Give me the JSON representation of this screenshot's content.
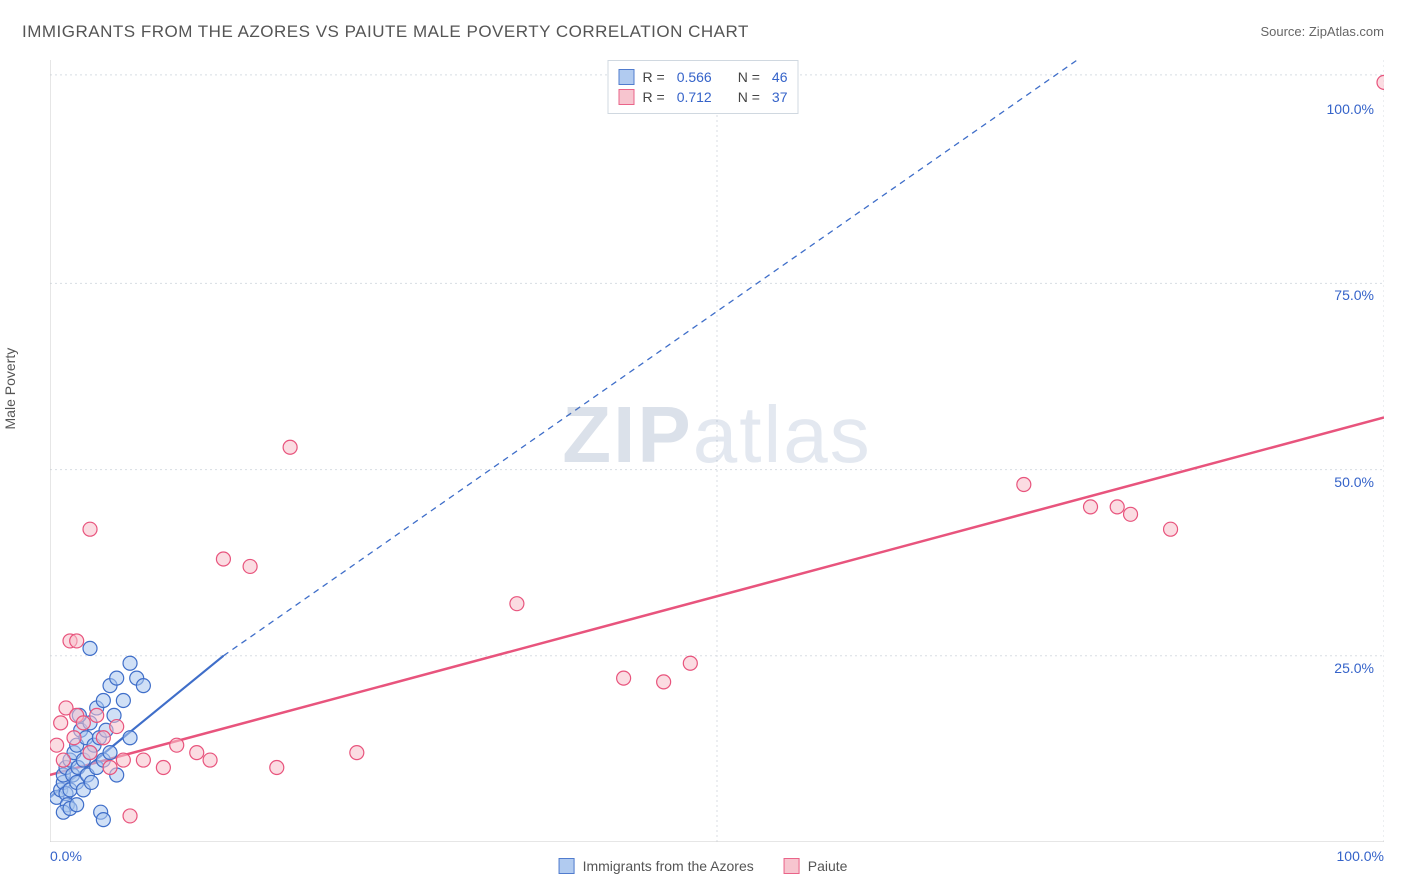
{
  "title": "IMMIGRANTS FROM THE AZORES VS PAIUTE MALE POVERTY CORRELATION CHART",
  "source_prefix": "Source: ",
  "source": "ZipAtlas.com",
  "ylabel": "Male Poverty",
  "watermark_bold": "ZIP",
  "watermark_rest": "atlas",
  "chart": {
    "type": "scatter",
    "xlim": [
      0,
      100
    ],
    "ylim": [
      0,
      105
    ],
    "x_ticks": [
      {
        "v": 0,
        "label": "0.0%"
      },
      {
        "v": 100,
        "label": "100.0%"
      }
    ],
    "y_ticks": [
      {
        "v": 25,
        "label": "25.0%"
      },
      {
        "v": 50,
        "label": "50.0%"
      },
      {
        "v": 75,
        "label": "75.0%"
      },
      {
        "v": 100,
        "label": "100.0%"
      }
    ],
    "grid_v": [
      50,
      100
    ],
    "grid_h": [
      25,
      50,
      75,
      103
    ],
    "background_color": "#ffffff",
    "grid_color": "#d8dde3",
    "axis_color": "#cccccc",
    "tick_label_color": "#3563c9",
    "marker_radius": 7,
    "marker_stroke_width": 1.2,
    "series": [
      {
        "key": "azores",
        "label": "Immigrants from the Azores",
        "fill": "#a9c6ef",
        "fill_opacity": 0.55,
        "stroke": "#3f6ec9",
        "R": "0.566",
        "N": "46",
        "trend": {
          "x1": 0,
          "y1": 6,
          "x2": 13,
          "y2": 25,
          "extend_x2": 77,
          "extend_y2": 105,
          "dash": "6 5",
          "color": "#3f6ec9",
          "width": 1.3
        },
        "points": [
          [
            0.5,
            6
          ],
          [
            0.8,
            7
          ],
          [
            1,
            8
          ],
          [
            1,
            9
          ],
          [
            1.2,
            6.5
          ],
          [
            1.2,
            10
          ],
          [
            1.3,
            5
          ],
          [
            1.5,
            7
          ],
          [
            1.5,
            11
          ],
          [
            1.7,
            9
          ],
          [
            1.8,
            12
          ],
          [
            2,
            8
          ],
          [
            2,
            13
          ],
          [
            2.1,
            10
          ],
          [
            2.3,
            15
          ],
          [
            2.5,
            7
          ],
          [
            2.5,
            11
          ],
          [
            2.7,
            14
          ],
          [
            2.8,
            9
          ],
          [
            3,
            12
          ],
          [
            3,
            16
          ],
          [
            3.1,
            8
          ],
          [
            3.3,
            13
          ],
          [
            3.5,
            10
          ],
          [
            3.5,
            18
          ],
          [
            3.7,
            14
          ],
          [
            3.8,
            4
          ],
          [
            4,
            11
          ],
          [
            4,
            19
          ],
          [
            4.2,
            15
          ],
          [
            4.5,
            12
          ],
          [
            4.5,
            21
          ],
          [
            4.8,
            17
          ],
          [
            5,
            9
          ],
          [
            5,
            22
          ],
          [
            5.5,
            19
          ],
          [
            6,
            14
          ],
          [
            6,
            24
          ],
          [
            6.5,
            22
          ],
          [
            7,
            21
          ],
          [
            1,
            4
          ],
          [
            1.5,
            4.5
          ],
          [
            2,
            5
          ],
          [
            3,
            26
          ],
          [
            4,
            3
          ],
          [
            2.2,
            17
          ]
        ]
      },
      {
        "key": "paiute",
        "label": "Paiute",
        "fill": "#f7bfca",
        "fill_opacity": 0.55,
        "stroke": "#e8547d",
        "R": "0.712",
        "N": "37",
        "trend": {
          "x1": 0,
          "y1": 9,
          "x2": 100,
          "y2": 57,
          "dash": "",
          "color": "#e8547d",
          "width": 2.5
        },
        "points": [
          [
            0.5,
            13
          ],
          [
            0.8,
            16
          ],
          [
            1,
            11
          ],
          [
            1.2,
            18
          ],
          [
            1.5,
            27
          ],
          [
            1.8,
            14
          ],
          [
            2,
            17
          ],
          [
            2,
            27
          ],
          [
            2.5,
            16
          ],
          [
            3,
            12
          ],
          [
            3,
            42
          ],
          [
            3.5,
            17
          ],
          [
            4,
            14
          ],
          [
            4.5,
            10
          ],
          [
            5,
            15.5
          ],
          [
            5.5,
            11
          ],
          [
            6,
            3.5
          ],
          [
            7,
            11
          ],
          [
            8.5,
            10
          ],
          [
            9.5,
            13
          ],
          [
            11,
            12
          ],
          [
            12,
            11
          ],
          [
            13,
            38
          ],
          [
            15,
            37
          ],
          [
            17,
            10
          ],
          [
            18,
            53
          ],
          [
            23,
            12
          ],
          [
            35,
            32
          ],
          [
            43,
            22
          ],
          [
            46,
            21.5
          ],
          [
            48,
            24
          ],
          [
            73,
            48
          ],
          [
            80,
            45
          ],
          [
            81,
            44
          ],
          [
            84,
            42
          ],
          [
            100,
            102
          ],
          [
            78,
            45
          ]
        ]
      }
    ]
  },
  "legend_top": {
    "r_label": "R =",
    "n_label": "N ="
  }
}
